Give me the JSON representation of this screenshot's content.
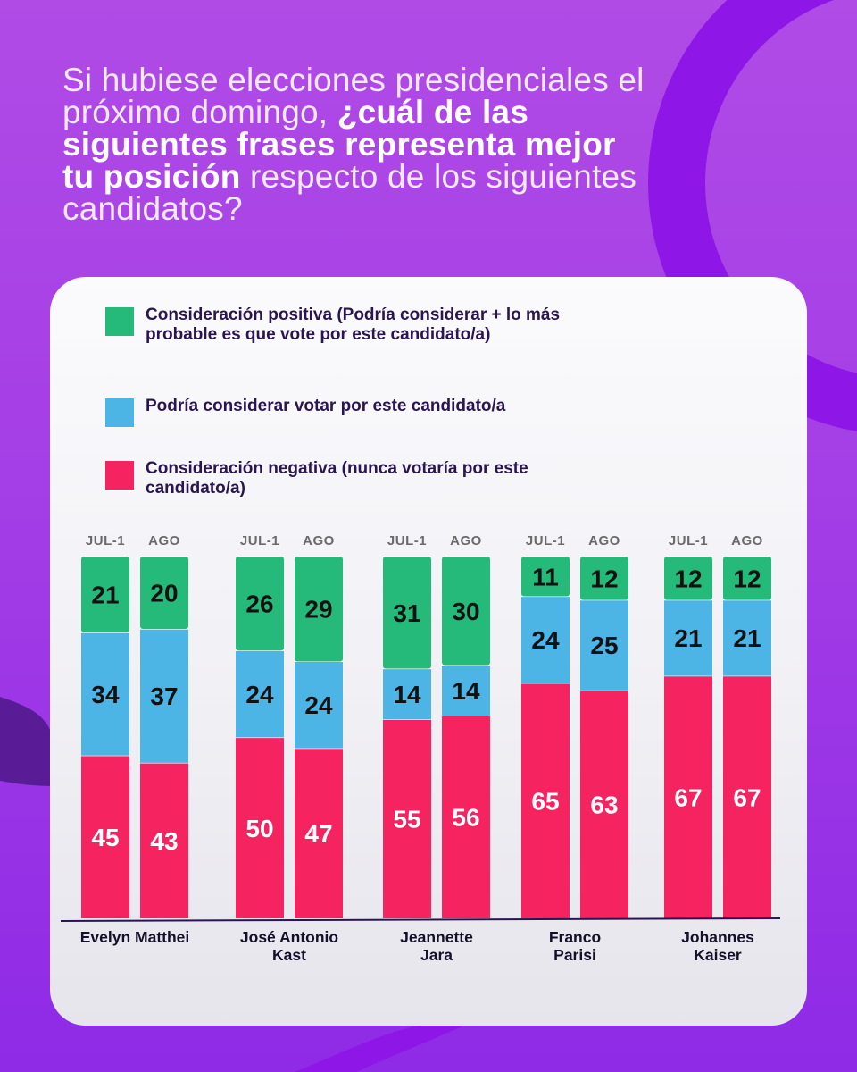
{
  "headline": {
    "part1": "Si hubiese elecciones presidenciales el próximo domingo, ",
    "bold": "¿cuál de las siguientes frases representa mejor tu posición",
    "part2": " respecto de los siguientes candidatos?"
  },
  "legend": {
    "items": [
      {
        "label": "Consideración positiva (Podría considerar + lo más probable es que vote por este candidato/a)",
        "color": "#25b97a"
      },
      {
        "label": "Podría considerar votar por este candidato/a",
        "color": "#4db5e6"
      },
      {
        "label": "Consideración negativa (nunca votaría por este candidato/a)",
        "color": "#f5235f"
      }
    ]
  },
  "colors": {
    "positive": "#25b97a",
    "consider": "#4db5e6",
    "negative": "#f5235f",
    "background": "#a43ee6",
    "ring": "#8e16e6",
    "dark_accent": "#5a1c96"
  },
  "chart_data": {
    "type": "bar",
    "stacked": true,
    "title": "Si hubiese elecciones presidenciales el próximo domingo, ¿cuál de las siguientes frases representa mejor tu posición respecto de los siguientes candidatos?",
    "periods": [
      "JUL-1",
      "AGO"
    ],
    "series_names": [
      "Consideración positiva (Podría considerar + lo más probable es que vote por este candidato/a)",
      "Podría considerar votar por este candidato/a",
      "Consideración negativa (nunca votaría por este candidato/a)"
    ],
    "candidates": [
      {
        "name_lines": [
          "Evelyn Matthei"
        ],
        "bars": [
          {
            "period": "JUL-1",
            "positive": 21,
            "consider": 34,
            "negative": 45
          },
          {
            "period": "AGO",
            "positive": 20,
            "consider": 37,
            "negative": 43
          }
        ]
      },
      {
        "name_lines": [
          "José Antonio",
          "Kast"
        ],
        "bars": [
          {
            "period": "JUL-1",
            "positive": 26,
            "consider": 24,
            "negative": 50
          },
          {
            "period": "AGO",
            "positive": 29,
            "consider": 24,
            "negative": 47
          }
        ]
      },
      {
        "name_lines": [
          "Jeannette",
          "Jara"
        ],
        "bars": [
          {
            "period": "JUL-1",
            "positive": 31,
            "consider": 14,
            "negative": 55
          },
          {
            "period": "AGO",
            "positive": 30,
            "consider": 14,
            "negative": 56
          }
        ]
      },
      {
        "name_lines": [
          "Franco",
          "Parisi"
        ],
        "bars": [
          {
            "period": "JUL-1",
            "positive": 11,
            "consider": 24,
            "negative": 65
          },
          {
            "period": "AGO",
            "positive": 12,
            "consider": 25,
            "negative": 63
          }
        ]
      },
      {
        "name_lines": [
          "Johannes",
          "Kaiser"
        ],
        "bars": [
          {
            "period": "JUL-1",
            "positive": 12,
            "consider": 21,
            "negative": 67
          },
          {
            "period": "AGO",
            "positive": 12,
            "consider": 21,
            "negative": 67
          }
        ]
      }
    ],
    "ylim": [
      0,
      100
    ],
    "xlabel": "",
    "ylabel": ""
  }
}
